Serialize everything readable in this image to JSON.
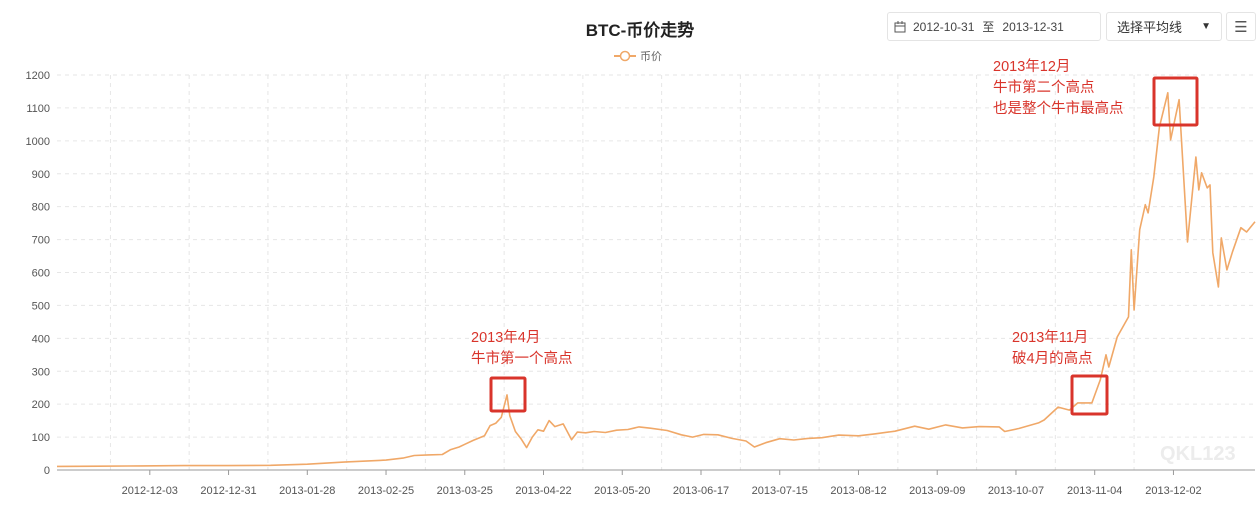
{
  "header": {
    "title": "BTC-币价走势",
    "date_start": "2012-10-31",
    "date_sep": "至",
    "date_end": "2013-12-31",
    "ma_select": "选择平均线",
    "menu_icon": "hamburger-icon",
    "calendar_icon": "calendar-icon"
  },
  "watermark": "QKL123",
  "annotations": [
    {
      "lines": [
        "2013年4月",
        "牛市第一个高点"
      ]
    },
    {
      "lines": [
        "2013年11月",
        "破4月的高点"
      ]
    },
    {
      "lines": [
        "2013年12月",
        "牛市第二个高点",
        "也是整个牛市最高点"
      ]
    }
  ],
  "colors": {
    "line": "#f0a868",
    "annotation": "#d9342b",
    "grid": "#e6e6e6"
  },
  "chart_data": {
    "type": "line",
    "title": "BTC-币价走势",
    "legend": [
      "币价"
    ],
    "legend_position": "top",
    "grid": true,
    "ylim": [
      0,
      1200
    ],
    "yticks": [
      0,
      100,
      200,
      300,
      400,
      500,
      600,
      700,
      800,
      900,
      1000,
      1100,
      1200
    ],
    "xlim": [
      "2012-10-31",
      "2013-12-31"
    ],
    "xticks": [
      "2012-12-03",
      "2012-12-31",
      "2013-01-28",
      "2013-02-25",
      "2013-03-25",
      "2013-04-22",
      "2013-05-20",
      "2013-06-17",
      "2013-07-15",
      "2013-08-12",
      "2013-09-09",
      "2013-10-07",
      "2013-11-04",
      "2013-12-02"
    ],
    "series": [
      {
        "name": "币价",
        "points": [
          [
            "2012-10-31",
            11
          ],
          [
            "2012-11-15",
            11.5
          ],
          [
            "2012-11-30",
            12.5
          ],
          [
            "2012-12-15",
            13.3
          ],
          [
            "2012-12-31",
            13.5
          ],
          [
            "2013-01-15",
            14.2
          ],
          [
            "2013-01-28",
            17.5
          ],
          [
            "2013-02-10",
            24
          ],
          [
            "2013-02-25",
            30
          ],
          [
            "2013-03-03",
            36
          ],
          [
            "2013-03-07",
            44
          ],
          [
            "2013-03-12",
            46
          ],
          [
            "2013-03-17",
            47
          ],
          [
            "2013-03-20",
            62
          ],
          [
            "2013-03-23",
            70
          ],
          [
            "2013-03-25",
            78
          ],
          [
            "2013-03-28",
            90
          ],
          [
            "2013-04-01",
            104
          ],
          [
            "2013-04-03",
            135
          ],
          [
            "2013-04-05",
            142
          ],
          [
            "2013-04-07",
            160
          ],
          [
            "2013-04-09",
            228
          ],
          [
            "2013-04-10",
            165
          ],
          [
            "2013-04-12",
            117
          ],
          [
            "2013-04-14",
            95
          ],
          [
            "2013-04-16",
            68
          ],
          [
            "2013-04-18",
            100
          ],
          [
            "2013-04-20",
            122
          ],
          [
            "2013-04-22",
            118
          ],
          [
            "2013-04-24",
            150
          ],
          [
            "2013-04-26",
            132
          ],
          [
            "2013-04-29",
            140
          ],
          [
            "2013-05-02",
            92
          ],
          [
            "2013-05-04",
            115
          ],
          [
            "2013-05-07",
            113
          ],
          [
            "2013-05-10",
            117
          ],
          [
            "2013-05-14",
            114
          ],
          [
            "2013-05-18",
            121
          ],
          [
            "2013-05-22",
            123
          ],
          [
            "2013-05-26",
            131
          ],
          [
            "2013-05-30",
            127
          ],
          [
            "2013-06-05",
            120
          ],
          [
            "2013-06-10",
            107
          ],
          [
            "2013-06-14",
            100
          ],
          [
            "2013-06-18",
            108
          ],
          [
            "2013-06-23",
            107
          ],
          [
            "2013-06-28",
            96
          ],
          [
            "2013-07-03",
            88
          ],
          [
            "2013-07-06",
            70
          ],
          [
            "2013-07-10",
            83
          ],
          [
            "2013-07-15",
            95
          ],
          [
            "2013-07-20",
            91
          ],
          [
            "2013-07-25",
            96
          ],
          [
            "2013-07-30",
            98
          ],
          [
            "2013-08-05",
            106
          ],
          [
            "2013-08-12",
            104
          ],
          [
            "2013-08-18",
            110
          ],
          [
            "2013-08-25",
            118
          ],
          [
            "2013-09-01",
            133
          ],
          [
            "2013-09-06",
            124
          ],
          [
            "2013-09-12",
            137
          ],
          [
            "2013-09-18",
            128
          ],
          [
            "2013-09-24",
            132
          ],
          [
            "2013-10-01",
            131
          ],
          [
            "2013-10-03",
            117
          ],
          [
            "2013-10-08",
            126
          ],
          [
            "2013-10-15",
            143
          ],
          [
            "2013-10-17",
            152
          ],
          [
            "2013-10-22",
            191
          ],
          [
            "2013-10-26",
            182
          ],
          [
            "2013-10-29",
            204
          ],
          [
            "2013-11-03",
            204
          ],
          [
            "2013-11-06",
            274
          ],
          [
            "2013-11-08",
            350
          ],
          [
            "2013-11-09",
            313
          ],
          [
            "2013-11-12",
            404
          ],
          [
            "2013-11-16",
            465
          ],
          [
            "2013-11-17",
            669
          ],
          [
            "2013-11-18",
            486
          ],
          [
            "2013-11-20",
            730
          ],
          [
            "2013-11-22",
            806
          ],
          [
            "2013-11-23",
            781
          ],
          [
            "2013-11-25",
            890
          ],
          [
            "2013-11-27",
            1042
          ],
          [
            "2013-11-30",
            1146
          ],
          [
            "2013-12-01",
            1003
          ],
          [
            "2013-12-04",
            1125
          ],
          [
            "2013-12-07",
            693
          ],
          [
            "2013-12-10",
            951
          ],
          [
            "2013-12-11",
            851
          ],
          [
            "2013-12-12",
            903
          ],
          [
            "2013-12-14",
            857
          ],
          [
            "2013-12-15",
            866
          ],
          [
            "2013-12-16",
            660
          ],
          [
            "2013-12-18",
            556
          ],
          [
            "2013-12-19",
            705
          ],
          [
            "2013-12-21",
            608
          ],
          [
            "2013-12-23",
            663
          ],
          [
            "2013-12-26",
            736
          ],
          [
            "2013-12-28",
            723
          ],
          [
            "2013-12-31",
            754
          ]
        ]
      }
    ]
  }
}
